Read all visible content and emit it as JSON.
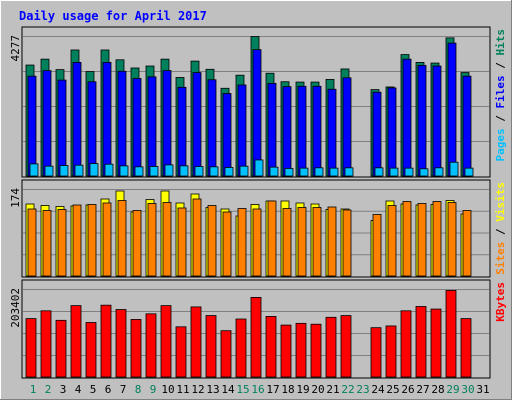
{
  "colors": {
    "background": "#c0c0c0",
    "frame_light": "#ffffff",
    "frame_dark": "#808080",
    "title": "#0000ff",
    "hits": "#00805c",
    "files": "#0000ff",
    "pages": "#00c0ff",
    "visits": "#ffff00",
    "sites": "#ff8000",
    "kbytes": "#ff0000",
    "day_weekend": "#00805c",
    "day_weekday": "#000000",
    "ylabel": "#000000",
    "gridline": "#808080"
  },
  "chart_data": {
    "type": "bar",
    "title": "Daily usage for April 2017",
    "categories": [
      "1",
      "2",
      "3",
      "4",
      "5",
      "6",
      "7",
      "8",
      "9",
      "10",
      "11",
      "12",
      "13",
      "14",
      "15",
      "16",
      "17",
      "18",
      "19",
      "20",
      "21",
      "22",
      "23",
      "24",
      "25",
      "26",
      "27",
      "28",
      "29",
      "30",
      "31"
    ],
    "weekend_days": [
      "1",
      "2",
      "8",
      "9",
      "15",
      "16",
      "22",
      "23",
      "29",
      "30"
    ],
    "grid": true,
    "panels": [
      {
        "name": "hits-files-pages",
        "ymax_label": "4277",
        "ymax": 4277,
        "legend": [
          {
            "text": "Pages",
            "color": "#00c0ff"
          },
          {
            "text": " / ",
            "color": "#000000"
          },
          {
            "text": "Files",
            "color": "#0000ff"
          },
          {
            "text": " / ",
            "color": "#000000"
          },
          {
            "text": "Hits",
            "color": "#00805c"
          }
        ],
        "series": [
          {
            "name": "Hits",
            "color": "#00805c",
            "values": [
              3390,
              3570,
              3250,
              3850,
              3190,
              3850,
              3550,
              3300,
              3360,
              3570,
              3010,
              3510,
              3260,
              2680,
              3080,
              4260,
              3140,
              2880,
              2870,
              2870,
              2950,
              3270,
              0,
              2640,
              2720,
              3710,
              3470,
              3450,
              4220,
              3160,
              0
            ]
          },
          {
            "name": "Files",
            "color": "#0000ff",
            "values": [
              3050,
              3220,
              2930,
              3470,
              2880,
              3470,
              3200,
              2980,
              3030,
              3220,
              2710,
              3160,
              2940,
              2520,
              2780,
              3860,
              2830,
              2730,
              2740,
              2740,
              2650,
              3000,
              0,
              2560,
              2690,
              3570,
              3380,
              3360,
              4060,
              3050,
              0
            ]
          },
          {
            "name": "Pages",
            "color": "#00c0ff",
            "values": [
              370,
              300,
              320,
              330,
              380,
              360,
              310,
              280,
              290,
              340,
              310,
              290,
              280,
              260,
              300,
              490,
              270,
              230,
              240,
              250,
              240,
              250,
              0,
              250,
              240,
              240,
              220,
              250,
              420,
              240,
              0
            ]
          }
        ]
      },
      {
        "name": "visits-sites",
        "ymax_label": "174",
        "ymax": 174,
        "legend": [
          {
            "text": "Sites",
            "color": "#ff8000"
          },
          {
            "text": " / ",
            "color": "#000000"
          },
          {
            "text": "Visits",
            "color": "#ffff00"
          }
        ],
        "series": [
          {
            "name": "Visits",
            "color": "#ffff00",
            "values": [
              144,
              141,
              139,
              140,
              142,
              154,
              170,
              128,
              153,
              170,
              146,
              164,
              137,
              134,
              120,
              143,
              150,
              150,
              146,
              144,
              133,
              134,
              0,
              111,
              150,
              144,
              142,
              143,
              151,
              124,
              0
            ]
          },
          {
            "name": "Sites",
            "color": "#ff8000",
            "values": [
              134,
              131,
              133,
              142,
              143,
              146,
              151,
              131,
              145,
              147,
              136,
              154,
              141,
              128,
              135,
              134,
              150,
              135,
              137,
              137,
              138,
              132,
              0,
              123,
              141,
              149,
              145,
              149,
              147,
              131,
              0
            ]
          }
        ]
      },
      {
        "name": "kbytes",
        "ymax_label": "203402",
        "ymax": 203402,
        "legend": [
          {
            "text": "KBytes",
            "color": "#ff0000"
          }
        ],
        "series": [
          {
            "name": "KBytes",
            "color": "#ff0000",
            "values": [
              135000,
              153000,
              131000,
              165000,
              126000,
              166000,
              156000,
              133000,
              146000,
              165000,
              116000,
              162000,
              142000,
              107000,
              134000,
              184000,
              140000,
              120000,
              124000,
              122000,
              138000,
              142000,
              0,
              114000,
              118000,
              153000,
              163000,
              157000,
              200000,
              135000,
              0
            ]
          }
        ]
      }
    ]
  }
}
